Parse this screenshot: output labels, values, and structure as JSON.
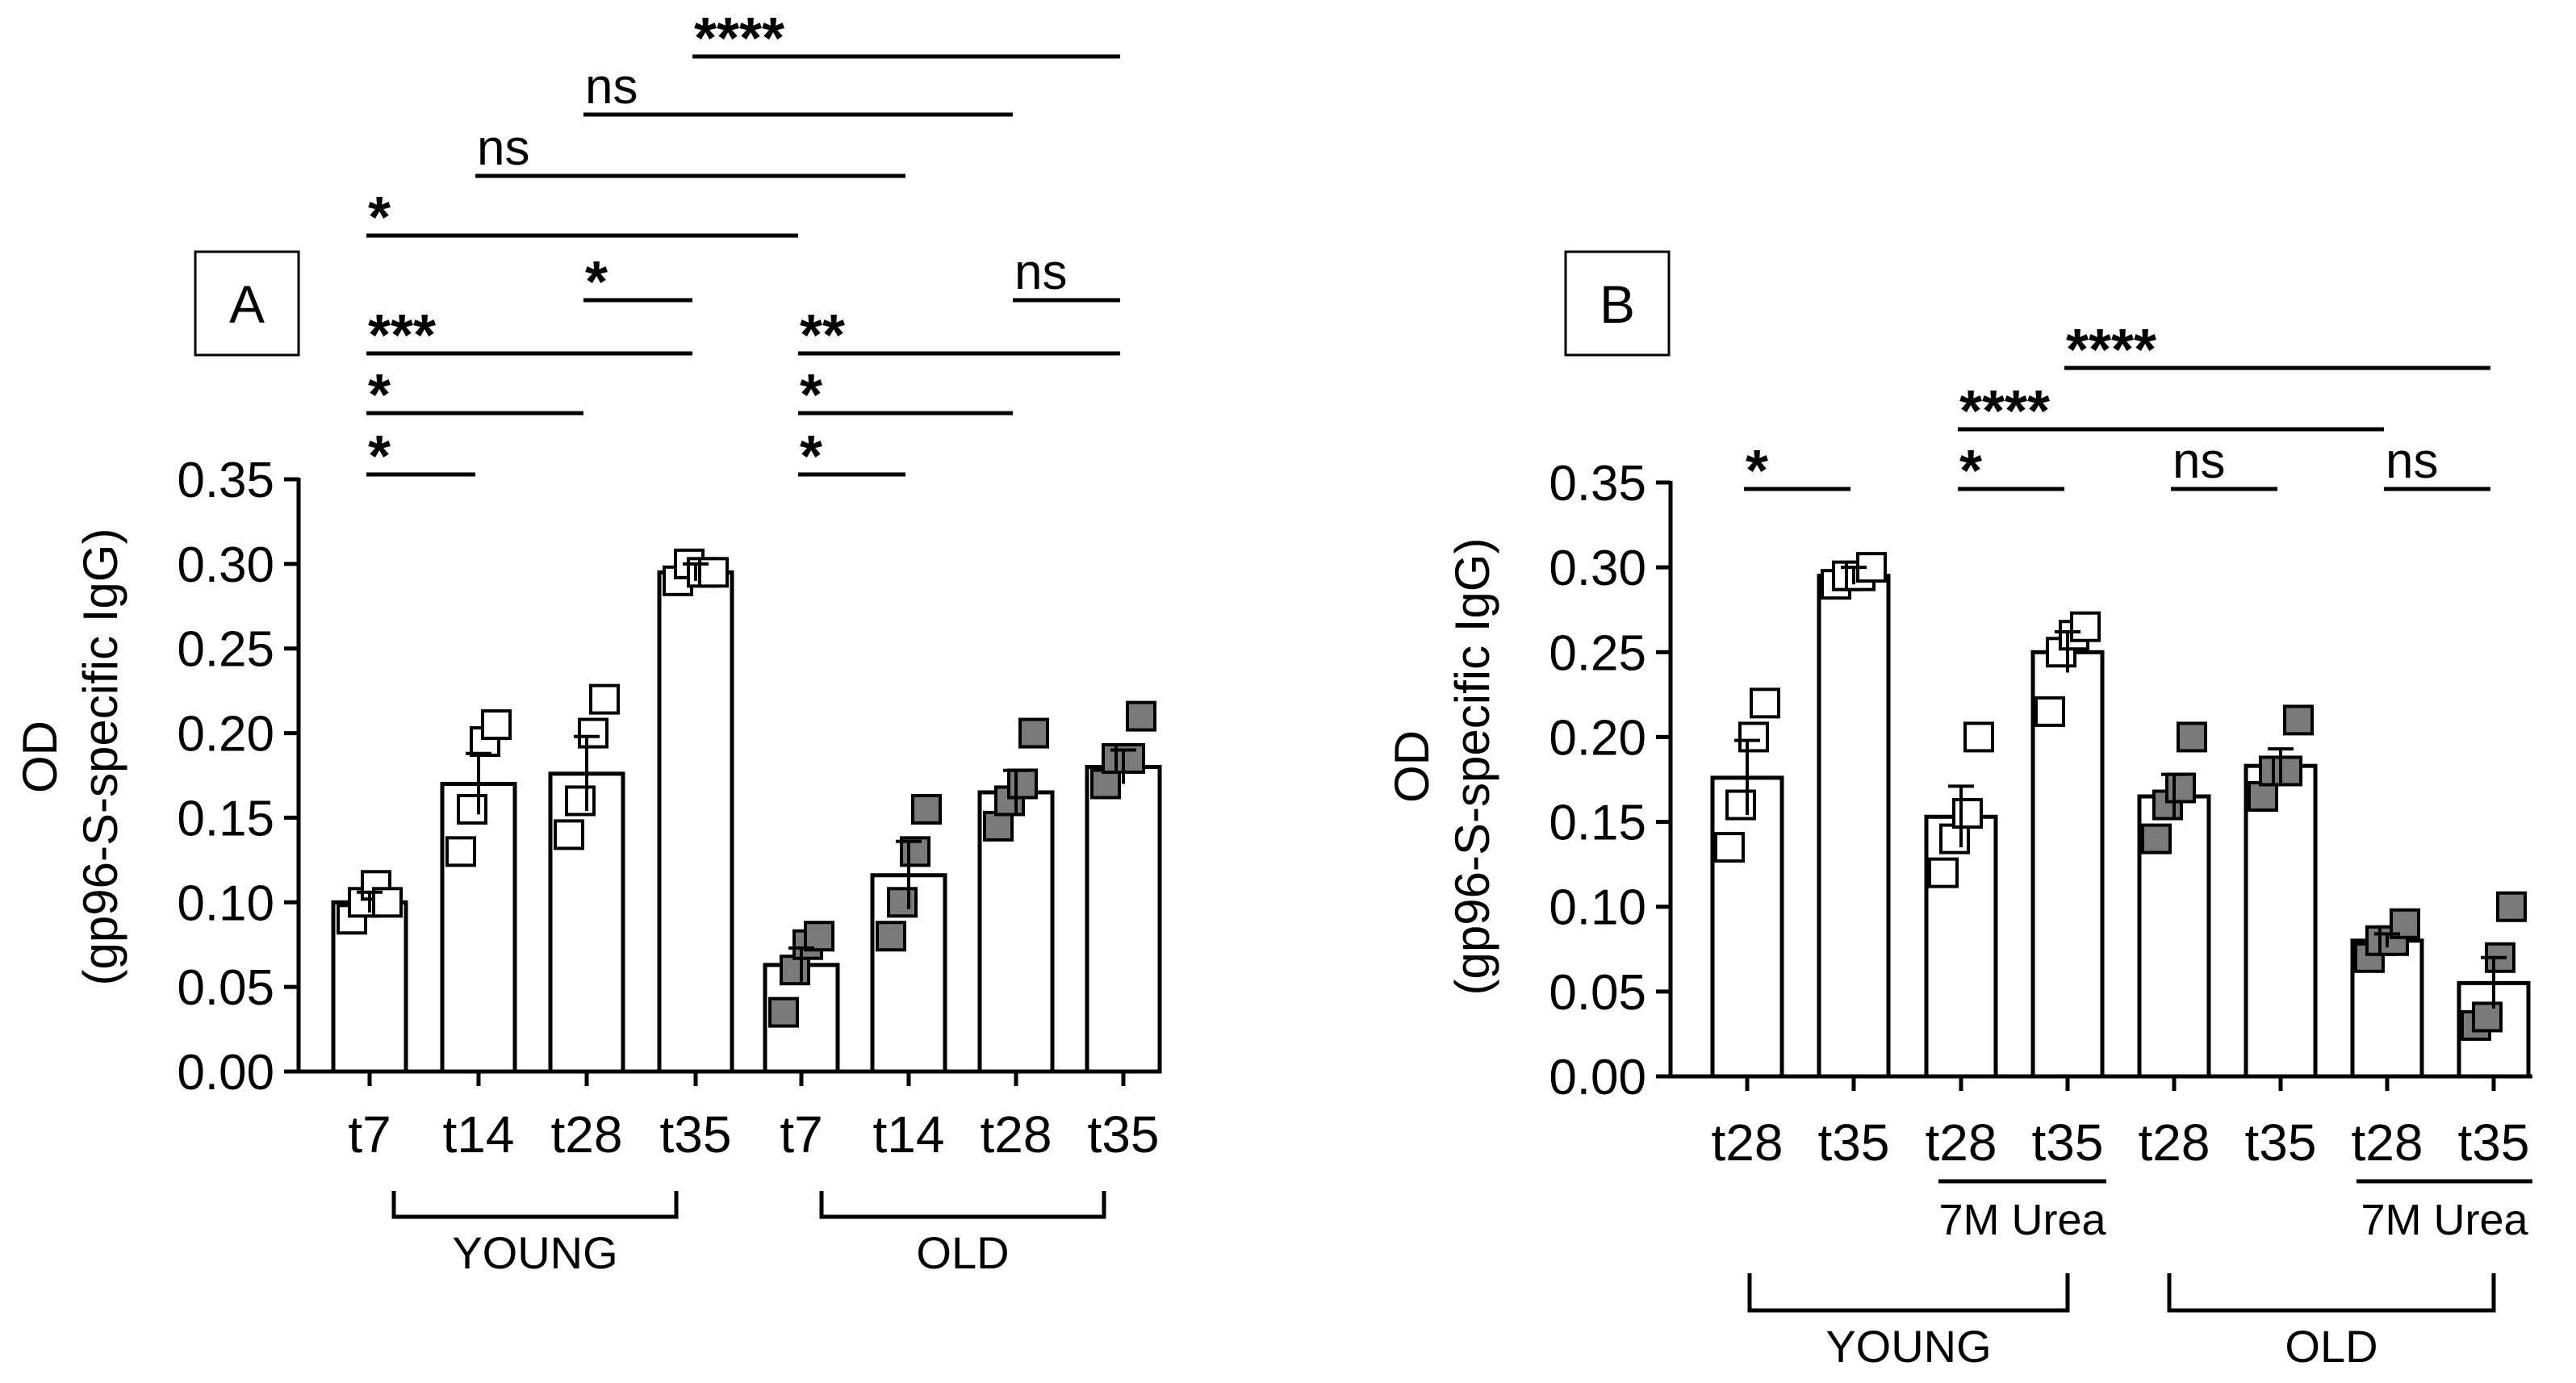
{
  "chart_data": [
    {
      "type": "bar",
      "panel": "A",
      "ylabel": "OD",
      "ylabel2": "(gp96-S-specific IgG)",
      "ylim": [
        0,
        0.35
      ],
      "yticks": [
        "0.00",
        "0.05",
        "0.10",
        "0.15",
        "0.20",
        "0.25",
        "0.30",
        "0.35"
      ],
      "categories": [
        "t7",
        "t14",
        "t28",
        "t35",
        "t7",
        "t14",
        "t28",
        "t35"
      ],
      "groups": [
        {
          "label": "YOUNG",
          "from": 0,
          "to": 3
        },
        {
          "label": "OLD",
          "from": 4,
          "to": 7
        }
      ],
      "values": [
        0.1,
        0.17,
        0.176,
        0.295,
        0.063,
        0.116,
        0.165,
        0.18
      ],
      "errors": [
        0.006,
        0.018,
        0.022,
        0.005,
        0.01,
        0.02,
        0.013,
        0.01
      ],
      "fills": [
        "white",
        "white",
        "white",
        "white",
        "white",
        "white",
        "white",
        "white"
      ],
      "points": [
        [
          0.09,
          0.1,
          0.11,
          0.1
        ],
        [
          0.13,
          0.155,
          0.195,
          0.205
        ],
        [
          0.14,
          0.16,
          0.2,
          0.22
        ],
        [
          0.29,
          0.3,
          0.295,
          0.295
        ],
        [
          0.035,
          0.06,
          0.075,
          0.08
        ],
        [
          0.08,
          0.1,
          0.13,
          0.155
        ],
        [
          0.145,
          0.16,
          0.17,
          0.2
        ],
        [
          0.17,
          0.185,
          0.185,
          0.21
        ]
      ],
      "point_fill": [
        "white",
        "white",
        "white",
        "white",
        "gray",
        "gray",
        "gray",
        "gray"
      ],
      "comparisons": [
        {
          "from": 0,
          "to": 1,
          "label": "*"
        },
        {
          "from": 0,
          "to": 2,
          "label": "*"
        },
        {
          "from": 0,
          "to": 3,
          "label": "***"
        },
        {
          "from": 2,
          "to": 3,
          "label": "*"
        },
        {
          "from": 4,
          "to": 5,
          "label": "*"
        },
        {
          "from": 4,
          "to": 6,
          "label": "*"
        },
        {
          "from": 4,
          "to": 7,
          "label": "**"
        },
        {
          "from": 6,
          "to": 7,
          "label": "ns"
        },
        {
          "from": 0,
          "to": 4,
          "label": "*"
        },
        {
          "from": 1,
          "to": 5,
          "label": "ns"
        },
        {
          "from": 2,
          "to": 6,
          "label": "ns"
        },
        {
          "from": 3,
          "to": 7,
          "label": "****"
        }
      ]
    },
    {
      "type": "bar",
      "panel": "B",
      "ylabel": "OD",
      "ylabel2": "(gp96-S-specific IgG)",
      "ylim": [
        0,
        0.35
      ],
      "yticks": [
        "0.00",
        "0.05",
        "0.10",
        "0.15",
        "0.20",
        "0.25",
        "0.30",
        "0.35"
      ],
      "categories": [
        "t28",
        "t35",
        "t28",
        "t35",
        "t28",
        "t35",
        "t28",
        "t35"
      ],
      "sublabels": [
        {
          "label": "7M Urea",
          "from": 2,
          "to": 3
        },
        {
          "label": "7M Urea",
          "from": 6,
          "to": 7
        }
      ],
      "groups": [
        {
          "label": "YOUNG",
          "from": 0,
          "to": 3
        },
        {
          "label": "OLD",
          "from": 4,
          "to": 7
        }
      ],
      "values": [
        0.176,
        0.295,
        0.153,
        0.25,
        0.165,
        0.183,
        0.08,
        0.055
      ],
      "errors": [
        0.022,
        0.005,
        0.018,
        0.012,
        0.013,
        0.01,
        0.004,
        0.015
      ],
      "fills": [
        "white",
        "white",
        "white",
        "white",
        "white",
        "white",
        "white",
        "white"
      ],
      "points": [
        [
          0.135,
          0.16,
          0.2,
          0.22
        ],
        [
          0.29,
          0.295,
          0.295,
          0.3
        ],
        [
          0.12,
          0.14,
          0.155,
          0.2
        ],
        [
          0.215,
          0.25,
          0.26,
          0.265
        ],
        [
          0.14,
          0.16,
          0.17,
          0.2
        ],
        [
          0.165,
          0.18,
          0.18,
          0.21
        ],
        [
          0.07,
          0.08,
          0.08,
          0.09
        ],
        [
          0.03,
          0.035,
          0.07,
          0.1
        ]
      ],
      "point_fill": [
        "white",
        "white",
        "white",
        "white",
        "gray",
        "gray",
        "gray",
        "gray"
      ],
      "comparisons": [
        {
          "from": 0,
          "to": 1,
          "label": "*"
        },
        {
          "from": 2,
          "to": 3,
          "label": "*"
        },
        {
          "from": 4,
          "to": 5,
          "label": "ns"
        },
        {
          "from": 6,
          "to": 7,
          "label": "ns"
        },
        {
          "from": 2,
          "to": 6,
          "label": "****"
        },
        {
          "from": 3,
          "to": 7,
          "label": "****"
        }
      ]
    }
  ]
}
